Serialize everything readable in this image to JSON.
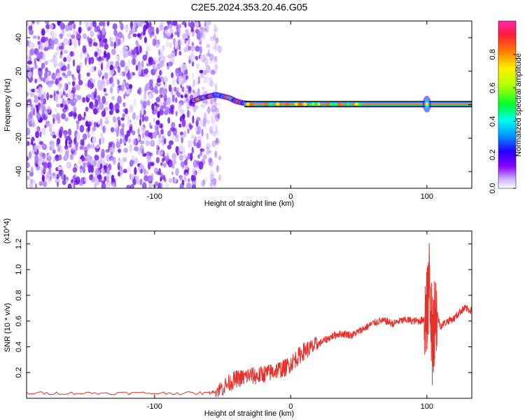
{
  "chart_data": [
    {
      "type": "heatmap",
      "title": "C2E5.2024.353.20.46.G05",
      "xlabel": "Height of straight line (km)",
      "ylabel": "Frequency (Hz)",
      "xlim": [
        -194,
        133
      ],
      "ylim": [
        -50,
        50
      ],
      "x_ticks": [
        -100,
        0,
        100
      ],
      "y_ticks": [
        -40,
        -20,
        0,
        20,
        40
      ],
      "noise_region_x": [
        -194,
        -52
      ],
      "ridge": {
        "x": [
          -72,
          -66,
          -60,
          -55,
          -50,
          -45,
          -40,
          -35,
          -30,
          -20,
          -10,
          0,
          10,
          20
        ],
        "y": [
          2,
          4,
          5,
          6,
          5,
          4,
          2,
          1,
          0.5,
          0.3,
          0.2,
          0.2,
          0.2,
          0.2
        ]
      },
      "line_frequency": 0.3,
      "line_start_x": -34,
      "spike_x": 100,
      "colorbar": {
        "label": "Normalized spectral amplitude",
        "range": [
          0.0,
          1.0
        ],
        "ticks": [
          0.0,
          0.2,
          0.4,
          0.6,
          0.8
        ],
        "tick_labels": [
          "0.0",
          "0.2",
          "0.4",
          "0.6",
          "0.8"
        ]
      }
    },
    {
      "type": "line",
      "xlabel": "Height of straight line (km)",
      "ylabel": "SNR (10 * v/v)",
      "multiplier": "(x10^4)",
      "xlim": [
        -194,
        133
      ],
      "ylim": [
        0,
        1.3
      ],
      "x_ticks": [
        -100,
        0,
        100
      ],
      "y_ticks": [
        0.2,
        0.4,
        0.6,
        0.8,
        1.0,
        1.2
      ],
      "y_tick_labels": [
        "0.2",
        "0.4",
        "0.6",
        "0.8",
        "1.0",
        "1.2"
      ],
      "grid": false,
      "series": [
        {
          "color": "#e8302a",
          "x": [
            -194,
            -150,
            -100,
            -60,
            -52,
            -45,
            -40,
            -35,
            -30,
            -25,
            -20,
            -15,
            -10,
            -5,
            0,
            5,
            10,
            15,
            20,
            25,
            30,
            35,
            40,
            45,
            50,
            55,
            60,
            65,
            70,
            75,
            80,
            85,
            90,
            95,
            98,
            100,
            102,
            104,
            106,
            110,
            115,
            120,
            125,
            128,
            133
          ],
          "y": [
            0.04,
            0.04,
            0.04,
            0.04,
            0.07,
            0.12,
            0.15,
            0.16,
            0.18,
            0.17,
            0.19,
            0.2,
            0.22,
            0.23,
            0.27,
            0.32,
            0.37,
            0.39,
            0.42,
            0.45,
            0.48,
            0.5,
            0.5,
            0.49,
            0.52,
            0.55,
            0.58,
            0.6,
            0.6,
            0.58,
            0.6,
            0.61,
            0.6,
            0.6,
            0.62,
            0.65,
            0.95,
            0.4,
            0.7,
            0.56,
            0.6,
            0.62,
            0.68,
            0.7,
            0.68
          ]
        }
      ]
    }
  ]
}
